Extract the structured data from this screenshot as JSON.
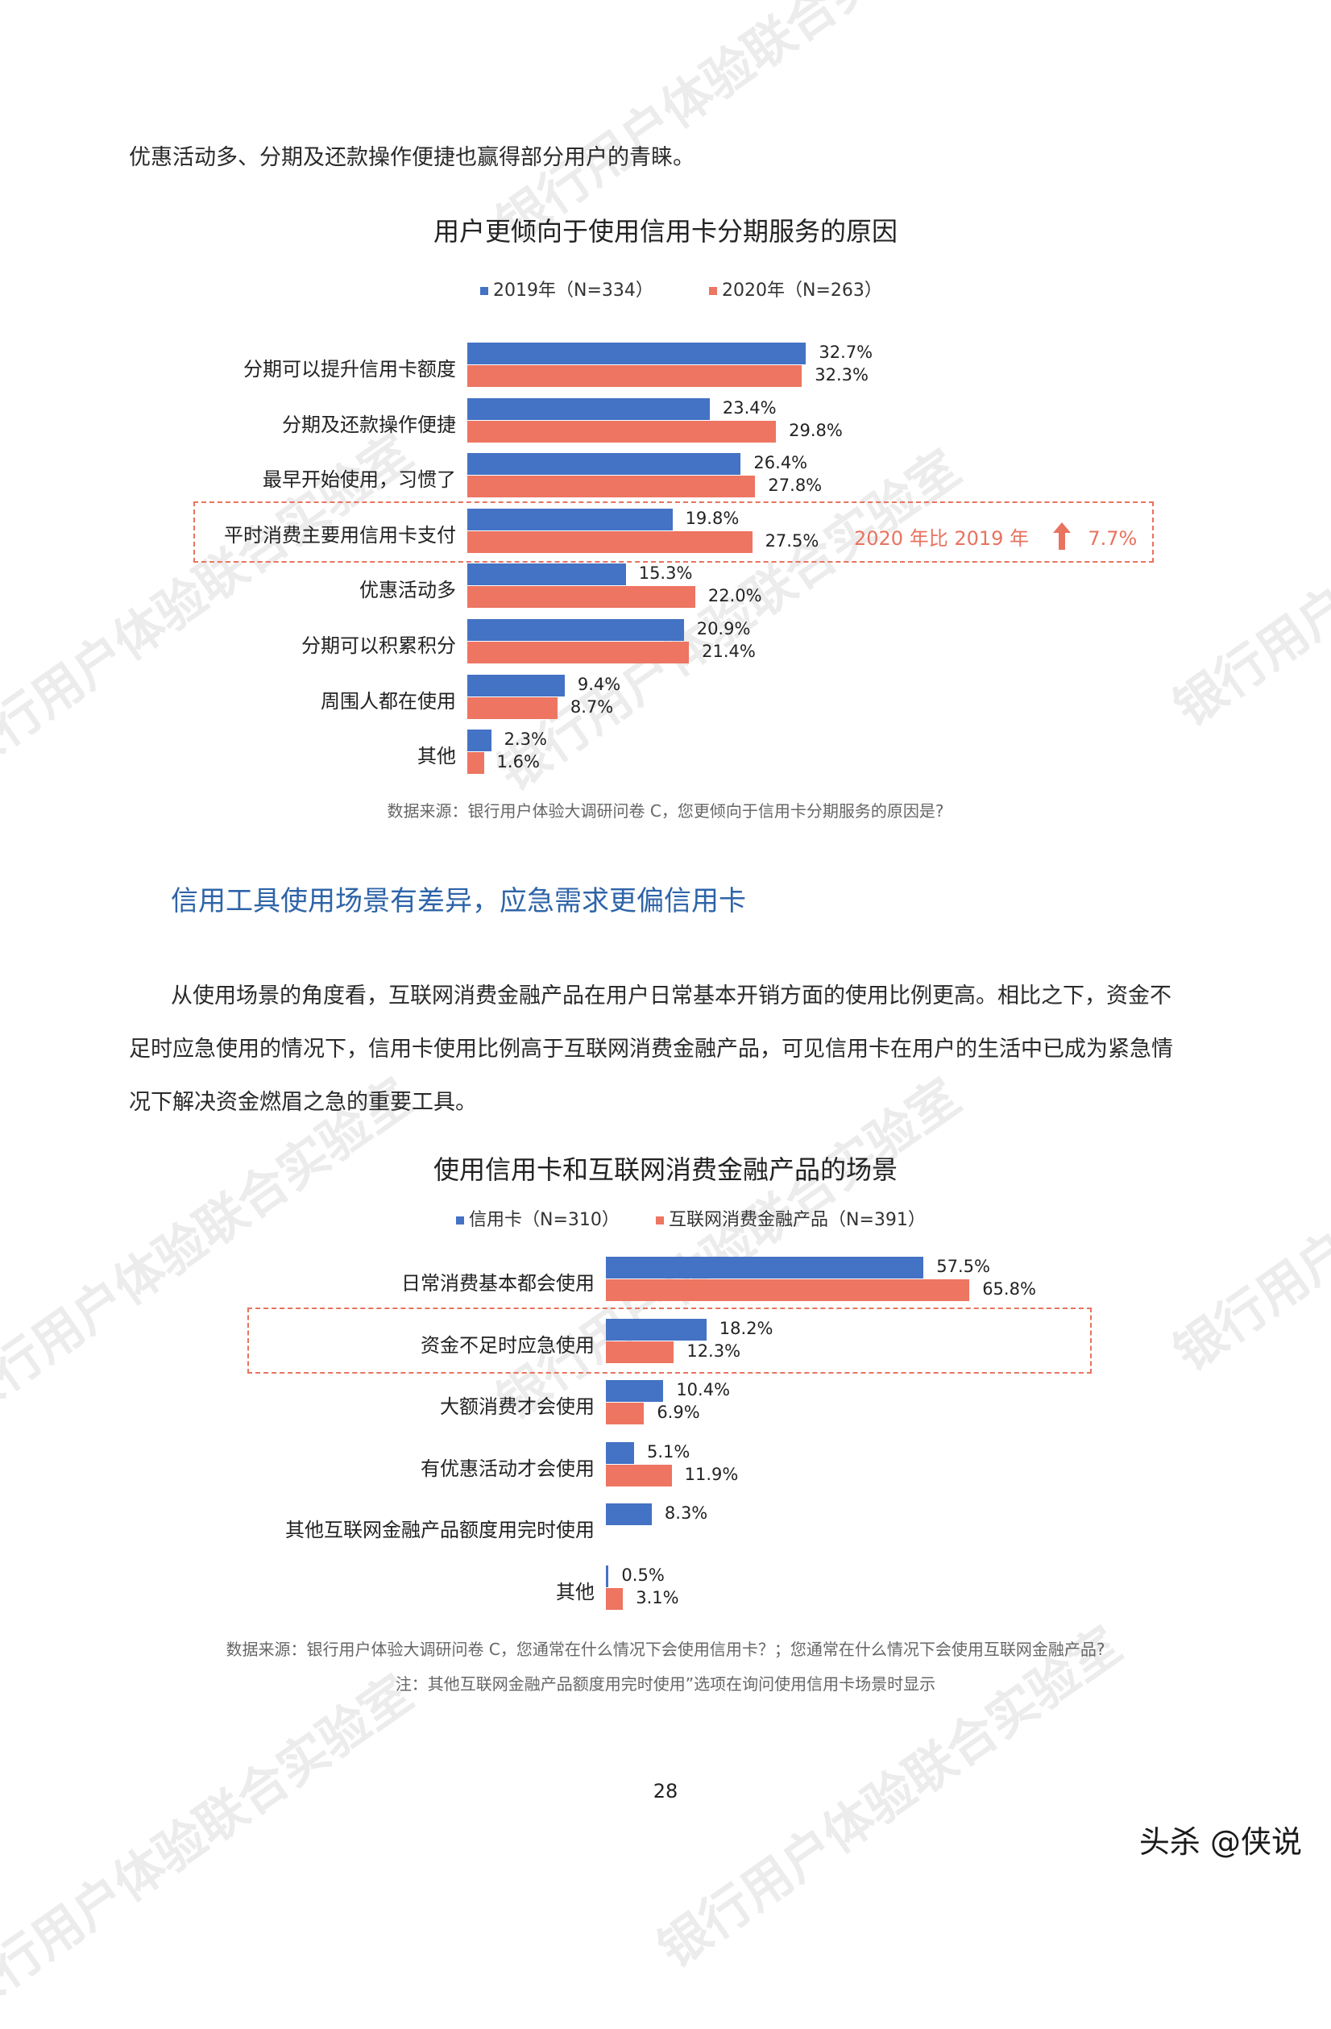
{
  "intro_text": "优惠活动多、分期及还款操作便捷也赢得部分用户的青睐。",
  "chart1": {
    "title": "用户更倾向于使用信用卡分期服务的原因",
    "source": "数据来源：银行用户体验大调研问卷 C，您更倾向于信用卡分期服务的原因是?",
    "annotation": "2020 年比 2019 年",
    "annotation_value": "7.7%",
    "highlight_index": 3
  },
  "section_heading": "信用工具使用场景有差异，应急需求更偏信用卡",
  "paragraph_lines": [
    "从使用场景的角度看，互联网消费金融产品在用户日常基本开销方面的使用比例更高。相比之下，资金不",
    "足时应急使用的情况下，信用卡使用比例高于互联网消费金融产品，可见信用卡在用户的生活中已成为紧急情",
    "况下解决资金燃眉之急的重要工具。"
  ],
  "chart2": {
    "title": "使用信用卡和互联网消费金融产品的场景",
    "source": "数据来源：银行用户体验大调研问卷 C，您通常在什么情况下会使用信用卡？；您通常在什么情况下会使用互联网金融产品?",
    "note": "注：其他互联网金融产品额度用完时使用”选项在询问使用信用卡场景时显示",
    "highlight_index": 1
  },
  "page_number": "28",
  "credit": "头杀 @侠说",
  "watermark": "银行用户体验联合实验室",
  "colors": {
    "blue": "#4472c4",
    "red": "#ed7561",
    "accent": "#e8735f",
    "heading": "#2e64a8"
  },
  "chart_data": [
    {
      "type": "bar",
      "orientation": "horizontal",
      "title": "用户更倾向于使用信用卡分期服务的原因",
      "categories": [
        "分期可以提升信用卡额度",
        "分期及还款操作便捷",
        "最早开始使用，习惯了",
        "平时消费主要用信用卡支付",
        "优惠活动多",
        "分期可以积累积分",
        "周围人都在使用",
        "其他"
      ],
      "series": [
        {
          "name": "2019年（N=334）",
          "color": "#4472c4",
          "values": [
            32.7,
            23.4,
            26.4,
            19.8,
            15.3,
            20.9,
            9.4,
            2.3
          ]
        },
        {
          "name": "2020年（N=263）",
          "color": "#ed7561",
          "values": [
            32.3,
            29.8,
            27.8,
            27.5,
            22.0,
            21.4,
            8.7,
            1.6
          ]
        }
      ],
      "labels": [
        [
          "32.7%",
          "23.4%",
          "26.4%",
          "19.8%",
          "15.3%",
          "20.9%",
          "9.4%",
          "2.3%"
        ],
        [
          "32.3%",
          "29.8%",
          "27.8%",
          "27.5%",
          "22.0%",
          "21.4%",
          "8.7%",
          "1.6%"
        ]
      ],
      "xlim": [
        0,
        35
      ],
      "legend_position": "top",
      "grid": false
    },
    {
      "type": "bar",
      "orientation": "horizontal",
      "title": "使用信用卡和互联网消费金融产品的场景",
      "categories": [
        "日常消费基本都会使用",
        "资金不足时应急使用",
        "大额消费才会使用",
        "有优惠活动才会使用",
        "其他互联网金融产品额度用完时使用",
        "其他"
      ],
      "series": [
        {
          "name": "信用卡（N=310）",
          "color": "#4472c4",
          "values": [
            57.5,
            18.2,
            10.4,
            5.1,
            8.3,
            0.5
          ]
        },
        {
          "name": "互联网消费金融产品（N=391）",
          "color": "#ed7561",
          "values": [
            65.8,
            12.3,
            6.9,
            11.9,
            null,
            3.1
          ]
        }
      ],
      "labels": [
        [
          "57.5%",
          "18.2%",
          "10.4%",
          "5.1%",
          "8.3%",
          "0.5%"
        ],
        [
          "65.8%",
          "12.3%",
          "6.9%",
          "11.9%",
          "",
          "3.1%"
        ]
      ],
      "xlim": [
        0,
        70
      ],
      "legend_position": "top",
      "grid": false
    }
  ]
}
